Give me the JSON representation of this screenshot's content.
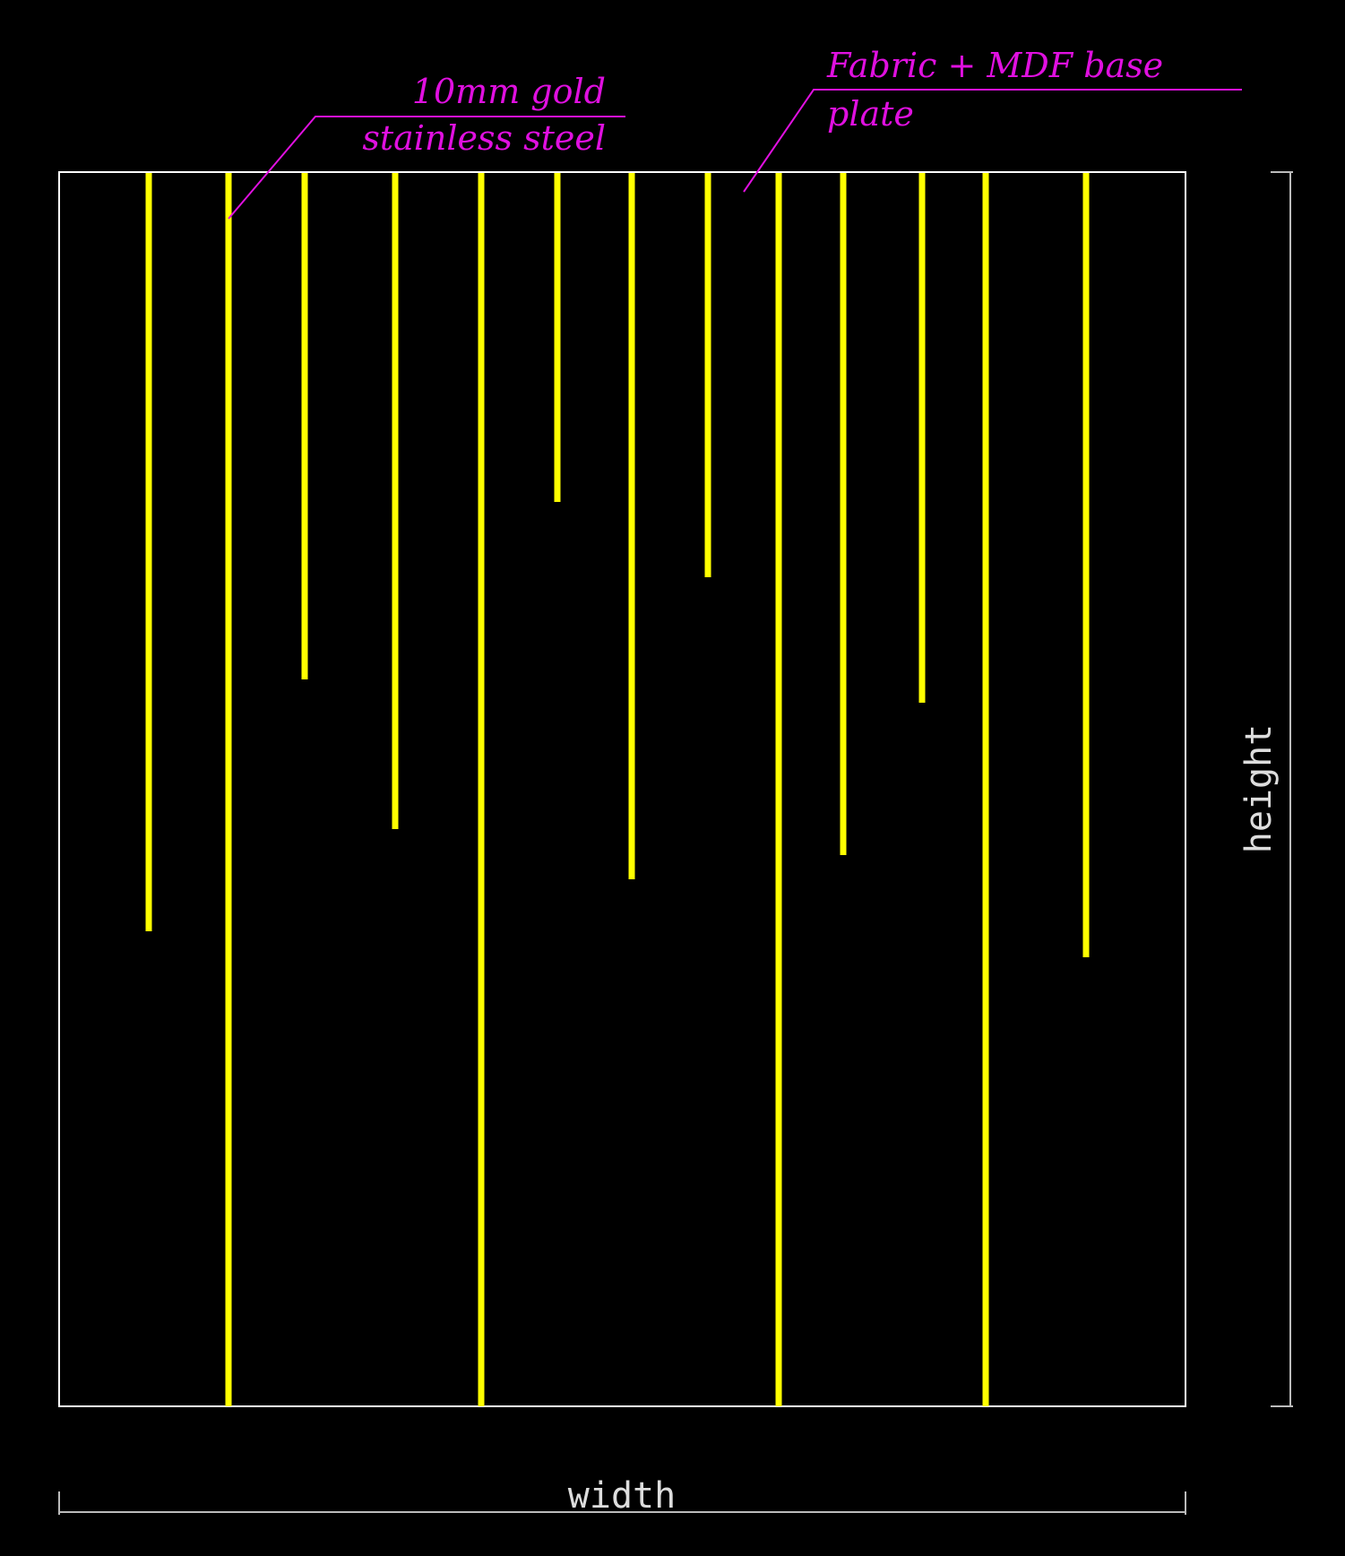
{
  "annotations": {
    "metal_strip": {
      "line1": "10mm gold",
      "line2": "stainless steel"
    },
    "base": {
      "line1": "Fabric + MDF base",
      "line2": "plate"
    }
  },
  "dimensions": {
    "width_label": "width",
    "height_label": "height"
  },
  "colors": {
    "background": "#000000",
    "outline": "#ffffff",
    "strips": "#ffff00",
    "annotation": "#e010e0",
    "dimension": "#bbbbbb"
  }
}
